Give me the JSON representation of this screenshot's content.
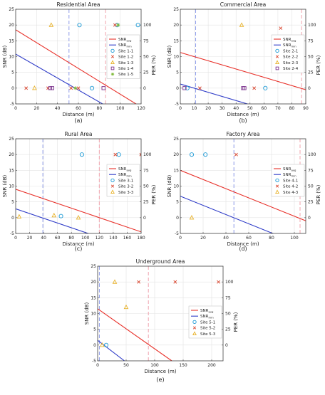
{
  "colors": {
    "snr_avg": "#e8312a",
    "snr_min": "#2f3cc8",
    "site1": "#1f9bd6",
    "site2": "#d9452e",
    "site3": "#e8b22a",
    "site4": "#7a2f8c",
    "site5": "#7fba3a",
    "vline_blue": "#8e9be8",
    "vline_red": "#f0a3ad",
    "grid": "#e3e3e3",
    "axis": "#444444"
  },
  "chart_data": [
    {
      "panel_label": "(a)",
      "type": "line",
      "title": "Residential Area",
      "xlabel": "Distance (m)",
      "ylabel": "SNR (dB)",
      "y2label": "PER (%)",
      "xlim": [
        0,
        120
      ],
      "ylim": [
        -5,
        25
      ],
      "xticks": [
        0,
        20,
        40,
        60,
        80,
        100,
        120
      ],
      "yticks": [
        -5,
        0,
        5,
        10,
        15,
        20,
        25
      ],
      "y2ticks": [
        0,
        25,
        50,
        75,
        100
      ],
      "grid": true,
      "legend_position": "top-right",
      "lines": [
        {
          "label_main": "SNR",
          "label_sub": "avg",
          "color": "snr_avg",
          "x": [
            0,
            120
          ],
          "y": [
            18.5,
            -6.0
          ]
        },
        {
          "label_main": "SNR",
          "label_sub": "min",
          "color": "snr_min",
          "x": [
            0,
            120
          ],
          "y": [
            10.8,
            -12.0
          ]
        }
      ],
      "vlines": [
        {
          "x": 51,
          "color": "vline_blue"
        },
        {
          "x": 86,
          "color": "vline_red"
        }
      ],
      "sites": [
        {
          "name": "Site 1-1",
          "marker": "circle",
          "color": "site1",
          "points": [
            [
              61,
              20
            ],
            [
              73,
              0
            ],
            [
              97,
              20
            ],
            [
              117,
              20
            ]
          ]
        },
        {
          "name": "Site 1-2",
          "marker": "x",
          "color": "site2",
          "points": [
            [
              10,
              0
            ],
            [
              31,
              0
            ],
            [
              53,
              0
            ],
            [
              60,
              0
            ],
            [
              95,
              20
            ]
          ]
        },
        {
          "name": "Site 1-3",
          "marker": "triangle",
          "color": "site3",
          "points": [
            [
              18,
              0
            ],
            [
              34,
              20
            ]
          ]
        },
        {
          "name": "Site 1-4",
          "marker": "square",
          "color": "site4",
          "points": [
            [
              33,
              0
            ],
            [
              35,
              0
            ],
            [
              84,
              0
            ]
          ]
        },
        {
          "name": "Site 1-5",
          "marker": "star",
          "color": "site5",
          "points": [
            [
              57,
              0
            ],
            [
              98,
              20
            ]
          ]
        }
      ]
    },
    {
      "panel_label": "(b)",
      "type": "line",
      "title": "Commercial Area",
      "xlabel": "Distance (m)",
      "ylabel": "SNR (dB)",
      "y2label": "PER (%)",
      "xlim": [
        0,
        90
      ],
      "ylim": [
        -5,
        25
      ],
      "xticks": [
        0,
        10,
        20,
        30,
        40,
        50,
        60,
        70,
        80,
        90
      ],
      "yticks": [
        -5,
        0,
        5,
        10,
        15,
        20,
        25
      ],
      "y2ticks": [
        0,
        25,
        50,
        75,
        100
      ],
      "grid": true,
      "legend_position": "top-right",
      "lines": [
        {
          "label_main": "SNR",
          "label_sub": "avg",
          "color": "snr_avg",
          "x": [
            0,
            90
          ],
          "y": [
            11.3,
            -0.5
          ]
        },
        {
          "label_main": "SNR",
          "label_sub": "min",
          "color": "snr_min",
          "x": [
            0,
            90
          ],
          "y": [
            1.3,
            -10.5
          ]
        }
      ],
      "vlines": [
        {
          "x": 11,
          "color": "vline_blue"
        },
        {
          "x": 87,
          "color": "vline_red"
        }
      ],
      "sites": [
        {
          "name": "Site 2-1",
          "marker": "circle",
          "color": "site1",
          "points": [
            [
              5,
              0
            ],
            [
              61,
              0
            ]
          ]
        },
        {
          "name": "Site 2-2",
          "marker": "x",
          "color": "site2",
          "points": [
            [
              14,
              0
            ],
            [
              53,
              0
            ],
            [
              72,
              19
            ]
          ]
        },
        {
          "name": "Site 2-3",
          "marker": "triangle",
          "color": "site3",
          "points": [
            [
              44,
              20
            ]
          ]
        },
        {
          "name": "Site 2-4",
          "marker": "square",
          "color": "site4",
          "points": [
            [
              3,
              0
            ],
            [
              45,
              0
            ],
            [
              46,
              0
            ]
          ]
        }
      ]
    },
    {
      "panel_label": "(c)",
      "type": "line",
      "title": "Rural Area",
      "xlabel": "Distance (m)",
      "ylabel": "SNR (dB)",
      "y2label": "PER (%)",
      "xlim": [
        0,
        180
      ],
      "ylim": [
        -5,
        25
      ],
      "xticks": [
        0,
        20,
        40,
        60,
        80,
        100,
        120,
        140,
        160,
        180
      ],
      "yticks": [
        -5,
        0,
        5,
        10,
        15,
        20,
        25
      ],
      "y2ticks": [
        0,
        25,
        50,
        75,
        100
      ],
      "grid": true,
      "legend_position": "top-right",
      "lines": [
        {
          "label_main": "SNR",
          "label_sub": "avg",
          "color": "snr_avg",
          "x": [
            0,
            180
          ],
          "y": [
            9.0,
            -4.5
          ]
        },
        {
          "label_main": "SNR",
          "label_sub": "min",
          "color": "snr_min",
          "x": [
            0,
            180
          ],
          "y": [
            2.8,
            -10.7
          ]
        }
      ],
      "vlines": [
        {
          "x": 39,
          "color": "vline_blue"
        },
        {
          "x": 120,
          "color": "vline_red"
        }
      ],
      "sites": [
        {
          "name": "Site 3-1",
          "marker": "circle",
          "color": "site1",
          "points": [
            [
              65,
              0.5
            ],
            [
              95,
              20
            ],
            [
              148,
              20
            ]
          ]
        },
        {
          "name": "Site 3-2",
          "marker": "x",
          "color": "site2",
          "points": [
            [
              143,
              20
            ],
            [
              180,
              20
            ]
          ]
        },
        {
          "name": "Site 3-3",
          "marker": "triangle",
          "color": "site3",
          "points": [
            [
              5,
              0.3
            ],
            [
              55,
              0.7
            ],
            [
              90,
              0
            ]
          ]
        }
      ]
    },
    {
      "panel_label": "(d)",
      "type": "line",
      "title": "Factory Area",
      "xlabel": "Distance (m)",
      "ylabel": "SNR (dB)",
      "y2label": "PER (%)",
      "xlim": [
        0,
        110
      ],
      "ylim": [
        -5,
        25
      ],
      "xticks": [
        0,
        20,
        40,
        60,
        80,
        100
      ],
      "yticks": [
        -5,
        0,
        5,
        10,
        15,
        20,
        25
      ],
      "y2ticks": [
        0,
        25,
        50,
        75,
        100
      ],
      "grid": true,
      "legend_position": "top-right",
      "lines": [
        {
          "label_main": "SNR",
          "label_sub": "avg",
          "color": "snr_avg",
          "x": [
            0,
            110
          ],
          "y": [
            15.0,
            -1.0
          ]
        },
        {
          "label_main": "SNR",
          "label_sub": "min",
          "color": "snr_min",
          "x": [
            0,
            110
          ],
          "y": [
            6.8,
            -9.2
          ]
        }
      ],
      "vlines": [
        {
          "x": 47,
          "color": "vline_blue"
        },
        {
          "x": 105,
          "color": "vline_red"
        }
      ],
      "sites": [
        {
          "name": "Site 4-1",
          "marker": "circle",
          "color": "site1",
          "points": [
            [
              10,
              20
            ],
            [
              22,
              20
            ]
          ]
        },
        {
          "name": "Site 4-2",
          "marker": "x",
          "color": "site2",
          "points": [
            [
              49,
              20
            ]
          ]
        },
        {
          "name": "Site 4-3",
          "marker": "triangle",
          "color": "site3",
          "points": [
            [
              10,
              0
            ]
          ]
        }
      ]
    },
    {
      "panel_label": "(e)",
      "type": "line",
      "title": "Underground Area",
      "xlabel": "Distance (m)",
      "ylabel": "SNR (dB)",
      "y2label": "PER (%)",
      "xlim": [
        0,
        220
      ],
      "ylim": [
        -5,
        25
      ],
      "xticks": [
        0,
        50,
        100,
        150,
        200
      ],
      "yticks": [
        -5,
        0,
        5,
        10,
        15,
        20,
        25
      ],
      "y2ticks": [
        0,
        25,
        50,
        75,
        100
      ],
      "grid": true,
      "legend_position": "right",
      "lines": [
        {
          "label_main": "SNR",
          "label_sub": "avg",
          "color": "snr_avg",
          "x": [
            0,
            130
          ],
          "y": [
            11.5,
            -5.0
          ]
        },
        {
          "label_main": "SNR",
          "label_sub": "min",
          "color": "snr_min",
          "x": [
            0,
            47
          ],
          "y": [
            1.5,
            -5.0
          ]
        }
      ],
      "vlines": [
        {
          "x": 3,
          "color": "vline_blue"
        },
        {
          "x": 89,
          "color": "vline_red"
        }
      ],
      "sites": [
        {
          "name": "Site 5-1",
          "marker": "circle",
          "color": "site1",
          "points": [
            [
              15,
              0
            ]
          ]
        },
        {
          "name": "Site 5-2",
          "marker": "x",
          "color": "site2",
          "points": [
            [
              72,
              20
            ],
            [
              136,
              20
            ],
            [
              212,
              20
            ]
          ]
        },
        {
          "name": "Site 5-3",
          "marker": "triangle",
          "color": "site3",
          "points": [
            [
              8,
              0
            ],
            [
              30,
              20
            ],
            [
              50,
              12
            ]
          ]
        }
      ]
    }
  ]
}
